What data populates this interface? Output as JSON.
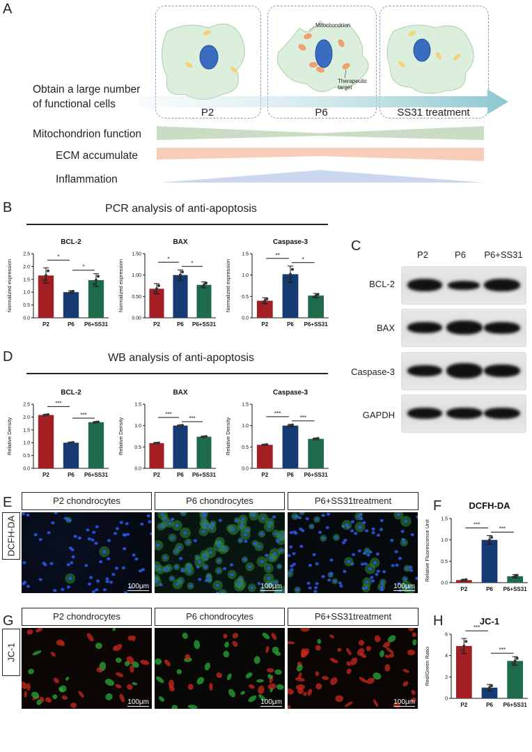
{
  "panels": {
    "A": "A",
    "B": "B",
    "C": "C",
    "D": "D",
    "E": "E",
    "F": "F",
    "G": "G",
    "H": "H"
  },
  "schematic": {
    "phases": [
      "P2",
      "P6",
      "SS31 treatment"
    ],
    "mito_label": "Mitochondrion",
    "target_label": "Therapeutic\ntarget",
    "arrow_label": "Obtain a large number\nof functional cells",
    "rows": [
      {
        "label": "Mitochondrion function",
        "color": "#c9dcc4"
      },
      {
        "label": "ECM accumulate",
        "color": "#f6cdb8"
      },
      {
        "label": "Inflammation",
        "color": "#c9d8ef"
      }
    ]
  },
  "colors": {
    "p2": "#a31f24",
    "p6": "#163a72",
    "ss31": "#1d6b4a"
  },
  "pcr": {
    "title": "PCR analysis of anti-apoptosis",
    "ylabel": "Normalized expression",
    "categories": [
      "P2",
      "P6",
      "P6+SS31"
    ]
  },
  "wb_quant": {
    "title": "WB analysis of anti-apoptosis",
    "ylabel": "Relative Density",
    "categories": [
      "P2",
      "P6",
      "P6+SS31"
    ]
  },
  "western": {
    "columns": [
      "P2",
      "P6",
      "P6+SS31"
    ],
    "rows": [
      "BCL-2",
      "BAX",
      "Caspase-3",
      "GAPDH"
    ]
  },
  "staining": {
    "headers": [
      "P2 chondrocytes",
      "P6 chondrocytes",
      "P6+SS31treatment"
    ],
    "row_e": "DCFH-DA",
    "row_g": "JC-1",
    "scale_bar": "100μm"
  },
  "chart_data": [
    {
      "id": "B1",
      "type": "bar",
      "title": "BCL-2",
      "ylabel": "Normalized expression",
      "categories": [
        "P2",
        "P6",
        "P6+SS31"
      ],
      "values": [
        1.65,
        1.0,
        1.47
      ],
      "errors": [
        0.3,
        0.06,
        0.25
      ],
      "ylim": [
        0,
        2.5
      ],
      "yticks": [
        "0.0",
        "0.5",
        "1.0",
        "1.5",
        "2.0",
        "2.5"
      ],
      "sig": [
        {
          "from": 0,
          "to": 1,
          "label": "*"
        },
        {
          "from": 1,
          "to": 2,
          "label": "*"
        }
      ]
    },
    {
      "id": "B2",
      "type": "bar",
      "title": "BAX",
      "ylabel": "Normalized expression",
      "categories": [
        "P2",
        "P6",
        "P6+SS31"
      ],
      "values": [
        0.68,
        1.0,
        0.77
      ],
      "errors": [
        0.12,
        0.12,
        0.07
      ],
      "ylim": [
        0,
        1.5
      ],
      "yticks": [
        "0.00",
        "0.50",
        "1.00",
        "1.50"
      ],
      "sig": [
        {
          "from": 0,
          "to": 1,
          "label": "*"
        },
        {
          "from": 1,
          "to": 2,
          "label": "*"
        }
      ]
    },
    {
      "id": "B3",
      "type": "bar",
      "title": "Caspase-3",
      "ylabel": "Normalized expression",
      "categories": [
        "P2",
        "P6",
        "P6+SS31"
      ],
      "values": [
        0.4,
        1.02,
        0.52
      ],
      "errors": [
        0.07,
        0.19,
        0.05
      ],
      "ylim": [
        0,
        1.5
      ],
      "yticks": [
        "0.0",
        "0.5",
        "1.0",
        "1.5"
      ],
      "sig": [
        {
          "from": 0,
          "to": 1,
          "label": "**"
        },
        {
          "from": 1,
          "to": 2,
          "label": "*"
        }
      ]
    },
    {
      "id": "D1",
      "type": "bar",
      "title": "BCL-2",
      "ylabel": "Relative Density",
      "categories": [
        "P2",
        "P6",
        "P6+SS31"
      ],
      "values": [
        2.08,
        1.0,
        1.8
      ],
      "errors": [
        0.03,
        0.02,
        0.02
      ],
      "ylim": [
        0,
        2.5
      ],
      "yticks": [
        "0.0",
        "0.5",
        "1.0",
        "1.5",
        "2.0",
        "2.5"
      ],
      "sig": [
        {
          "from": 0,
          "to": 1,
          "label": "***"
        },
        {
          "from": 1,
          "to": 2,
          "label": "***"
        }
      ]
    },
    {
      "id": "D2",
      "type": "bar",
      "title": "BAX",
      "ylabel": "Relative Density",
      "categories": [
        "P2",
        "P6",
        "P6+SS31"
      ],
      "values": [
        0.59,
        1.0,
        0.74
      ],
      "errors": [
        0.01,
        0.01,
        0.01
      ],
      "ylim": [
        0,
        1.5
      ],
      "yticks": [
        "0.0",
        "0.5",
        "1.0",
        "1.5"
      ],
      "sig": [
        {
          "from": 0,
          "to": 1,
          "label": "***"
        },
        {
          "from": 1,
          "to": 2,
          "label": "***"
        }
      ]
    },
    {
      "id": "D3",
      "type": "bar",
      "title": "Caspase-3",
      "ylabel": "Relative Density",
      "categories": [
        "P2",
        "P6",
        "P6+SS31"
      ],
      "values": [
        0.55,
        1.0,
        0.69
      ],
      "errors": [
        0.01,
        0.03,
        0.02
      ],
      "ylim": [
        0,
        1.5
      ],
      "yticks": [
        "0.0",
        "0.5",
        "1.0",
        "1.5"
      ],
      "sig": [
        {
          "from": 0,
          "to": 1,
          "label": "***"
        },
        {
          "from": 1,
          "to": 2,
          "label": "***"
        }
      ]
    },
    {
      "id": "F",
      "type": "bar",
      "title": "DCFH-DA",
      "ylabel": "Relative Fluorescence Unit",
      "categories": [
        "P2",
        "P6",
        "P6+SS31"
      ],
      "values": [
        0.06,
        1.0,
        0.15
      ],
      "errors": [
        0.02,
        0.1,
        0.04
      ],
      "ylim": [
        0,
        1.5
      ],
      "yticks": [
        "0.0",
        "0.5",
        "1.0",
        "1.5"
      ],
      "sig": [
        {
          "from": 0,
          "to": 1,
          "label": "***"
        },
        {
          "from": 1,
          "to": 2,
          "label": "***"
        }
      ]
    },
    {
      "id": "H",
      "type": "bar",
      "title": "JC-1",
      "ylabel": "Red/Green Ratio",
      "categories": [
        "P2",
        "P6",
        "P6+SS31"
      ],
      "values": [
        4.9,
        1.0,
        3.5
      ],
      "errors": [
        0.7,
        0.3,
        0.4
      ],
      "ylim": [
        0,
        6
      ],
      "yticks": [
        "0",
        "2",
        "4",
        "6"
      ],
      "sig": [
        {
          "from": 0,
          "to": 1,
          "label": "***"
        },
        {
          "from": 1,
          "to": 2,
          "label": "***"
        }
      ]
    }
  ]
}
